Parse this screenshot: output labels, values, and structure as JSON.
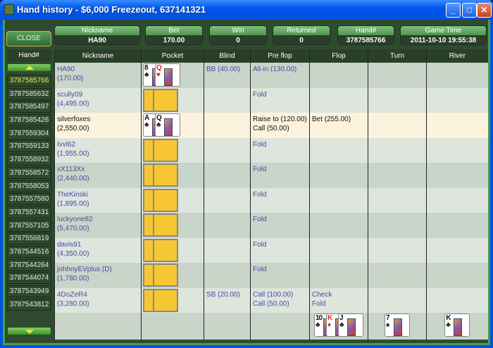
{
  "window": {
    "title": "Hand history - $6,000 Freezeout, 637141321"
  },
  "summary": [
    {
      "label": "Nickname",
      "value": "HA90"
    },
    {
      "label": "Bet",
      "value": "170.00"
    },
    {
      "label": "Win",
      "value": "0"
    },
    {
      "label": "Returned",
      "value": "0"
    },
    {
      "label": "Hand#",
      "value": "3787585766"
    },
    {
      "label": "Game Time",
      "value": "2011-10-10 19:55:38"
    }
  ],
  "close_label": "CLOSE",
  "hand_list": {
    "header": "Hand#",
    "selected": "3787585766",
    "items": [
      "3787585766",
      "3787585632",
      "3787585497",
      "3787585426",
      "3787559304",
      "3787559133",
      "3787558932",
      "3787558572",
      "3787558053",
      "3787557580",
      "3787557431",
      "3787557105",
      "3787556819",
      "3787544516",
      "3787544264",
      "3787544074",
      "3787543949",
      "3787543812"
    ]
  },
  "columns": [
    "Nickname",
    "Pocket",
    "Blind",
    "Pre flop",
    "Flop",
    "Turn",
    "River"
  ],
  "rows": [
    {
      "name": "HA90",
      "stack": "(170.00)",
      "cards": [
        {
          "r": "8",
          "s": "♣"
        },
        {
          "r": "Q",
          "s": "♥"
        }
      ],
      "blind": "BB (40.00)",
      "preflop": "All-in (130.00)",
      "flop": ""
    },
    {
      "name": "scully09",
      "stack": "(4,495.00)",
      "blind": "",
      "preflop": "Fold",
      "flop": ""
    },
    {
      "name": "silverfoxes",
      "stack": "(2,550.00)",
      "cards": [
        {
          "r": "A",
          "s": "♣"
        },
        {
          "r": "Q",
          "s": "♣"
        }
      ],
      "blind": "",
      "preflop": "Raise to (120.00)\nCall (50.00)",
      "flop": "Bet (255.00)"
    },
    {
      "name": "Ivvl62",
      "stack": "(1,955.00)",
      "blind": "",
      "preflop": "Fold",
      "flop": ""
    },
    {
      "name": "xX113Xx",
      "stack": "(2,440.00)",
      "blind": "",
      "preflop": "Fold",
      "flop": ""
    },
    {
      "name": "TheKinski",
      "stack": "(1,895.00)",
      "blind": "",
      "preflop": "Fold",
      "flop": ""
    },
    {
      "name": "luckyone82",
      "stack": "(5,470.00)",
      "blind": "",
      "preflop": "Fold",
      "flop": ""
    },
    {
      "name": "davis91",
      "stack": "(4,350.00)",
      "blind": "",
      "preflop": "Fold",
      "flop": ""
    },
    {
      "name": "johhnyEVplus (D)",
      "stack": "(1,780.00)",
      "blind": "",
      "preflop": "Fold",
      "flop": ""
    },
    {
      "name": "4DoZeR4",
      "stack": "(3,280.00)",
      "blind": "SB (20.00)",
      "preflop": "Call (100.00)\nCall (50.00)",
      "flop": "Check\nFold"
    }
  ],
  "board": {
    "flop": [
      {
        "r": "10",
        "s": "♣"
      },
      {
        "r": "K",
        "s": "♦"
      },
      {
        "r": "J",
        "s": "♣"
      }
    ],
    "turn": [
      {
        "r": "7",
        "s": "♠"
      }
    ],
    "river": [
      {
        "r": "K",
        "s": "♣"
      }
    ]
  },
  "colors": {
    "selected_hand": "#f0f040",
    "highlight_row": "#fdf2dc",
    "card_back": "#f7c733"
  }
}
